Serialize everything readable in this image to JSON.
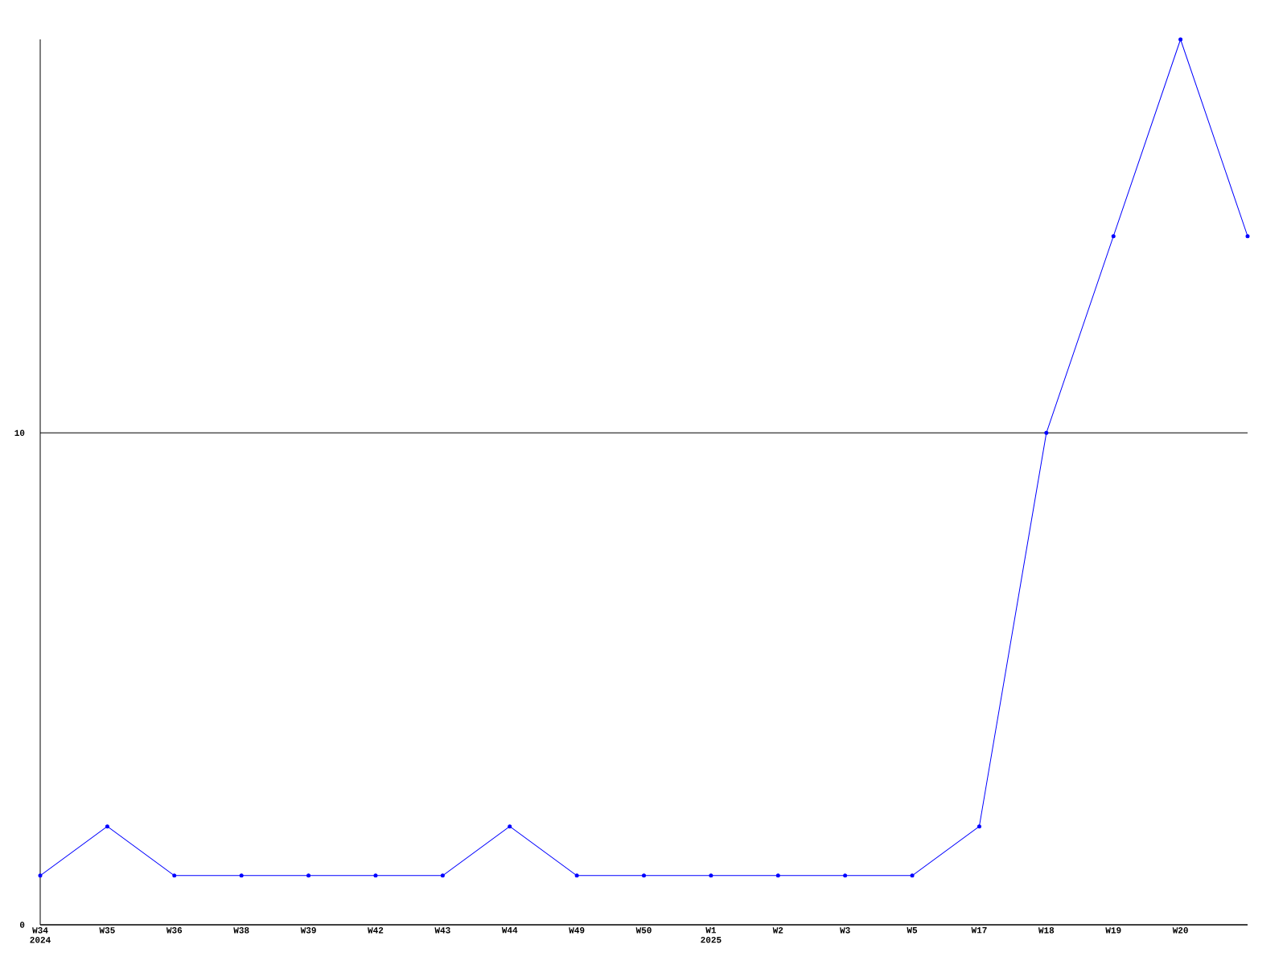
{
  "chart_data": {
    "type": "line",
    "categories": [
      "W34 2024",
      "W35",
      "W36",
      "W38",
      "W39",
      "W42",
      "W43",
      "W44",
      "W49",
      "W50",
      "W1 2025",
      "W2",
      "W3",
      "W5",
      "W17",
      "W18",
      "W19",
      "W20",
      null
    ],
    "values": [
      1,
      2,
      1,
      1,
      1,
      1,
      1,
      2,
      1,
      1,
      1,
      1,
      1,
      1,
      2,
      10,
      14,
      18,
      14
    ],
    "color": "#0000ff",
    "marker": "circle",
    "grid": "y",
    "ylim": [
      0,
      18
    ],
    "yticks": [
      0,
      10
    ]
  }
}
